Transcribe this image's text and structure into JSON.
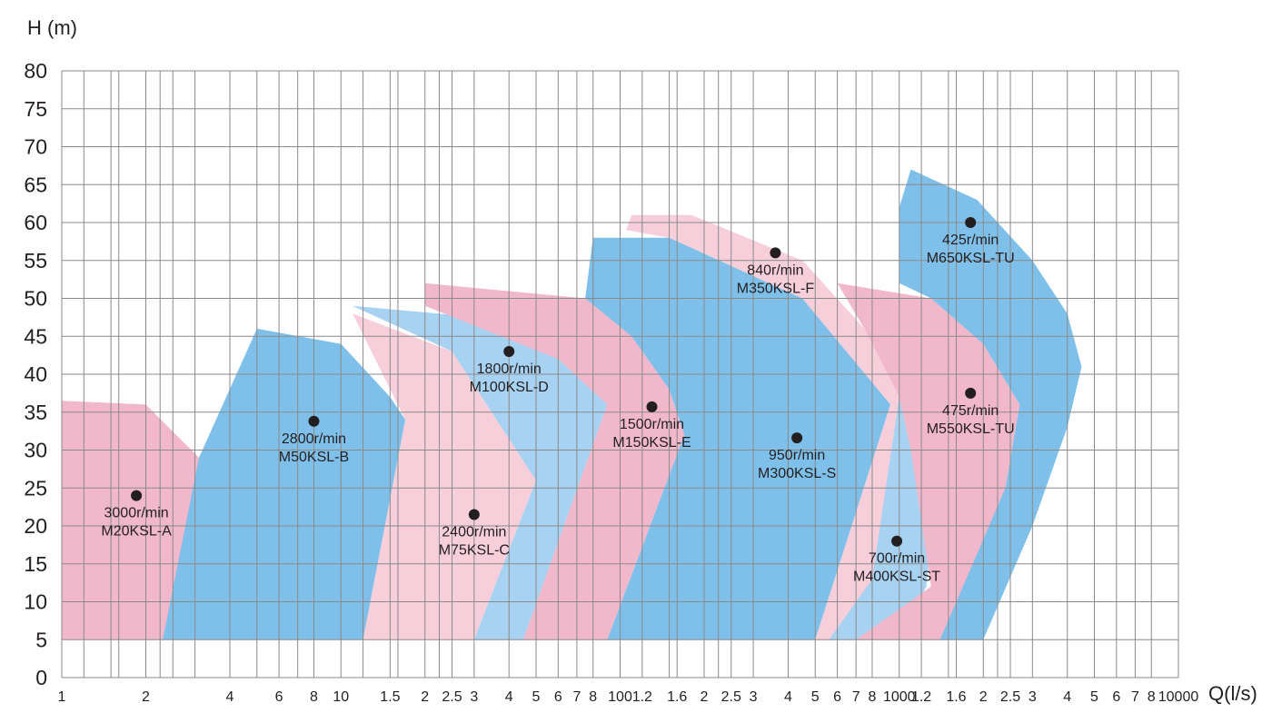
{
  "colors": {
    "pink": "#f0b8ca",
    "light_pink": "#f6cfdb",
    "blue": "#7fc0ea",
    "light_blue": "#a8d2f1",
    "grid": "#8a8a8a",
    "text": "#231f20"
  },
  "chart_data": {
    "type": "area",
    "title": "",
    "xlabel": "Q(l/s)",
    "ylabel": "H (m)",
    "x_scale": "log",
    "xlim": [
      1,
      10000
    ],
    "ylim": [
      0,
      80
    ],
    "y_ticks": [
      "0",
      "5",
      "10",
      "15",
      "20",
      "25",
      "30",
      "35",
      "40",
      "45",
      "50",
      "55",
      "60",
      "65",
      "70",
      "75",
      "80"
    ],
    "x_tick_labels": [
      "1",
      "2",
      "4",
      "6",
      "8",
      "10",
      "1.5",
      "2",
      "2.5",
      "3",
      "4",
      "5",
      "6",
      "7",
      "8",
      "100",
      "1.2",
      "1.6",
      "2",
      "2.5",
      "3",
      "4",
      "5",
      "6",
      "7",
      "8",
      "1000",
      "1.2",
      "1.6",
      "2",
      "2.5",
      "3",
      "4",
      "5",
      "6",
      "7",
      "8",
      "10000"
    ],
    "grid": true,
    "legend": "none",
    "regions": [
      {
        "name": "M20KSL-A",
        "speed": "3000r/min",
        "color": "pink",
        "label_point": [
          1.85,
          24
        ],
        "outline": [
          [
            1,
            5
          ],
          [
            1,
            36.5
          ],
          [
            2,
            36
          ],
          [
            3.1,
            29
          ],
          [
            5,
            20
          ],
          [
            2.3,
            5
          ]
        ]
      },
      {
        "name": "M50KSL-B",
        "speed": "2800r/min",
        "color": "blue",
        "label_point": [
          8,
          33.8
        ],
        "outline": [
          [
            2.3,
            5
          ],
          [
            3.1,
            29
          ],
          [
            5,
            46
          ],
          [
            10,
            44
          ],
          [
            15,
            37
          ],
          [
            17,
            34
          ],
          [
            12,
            5
          ]
        ]
      },
      {
        "name": "M75KSL-C",
        "speed": "2400r/min",
        "color": "light_pink",
        "label_point": [
          30,
          21.5
        ],
        "outline": [
          [
            12,
            5
          ],
          [
            17,
            34
          ],
          [
            11,
            48
          ],
          [
            25,
            43
          ],
          [
            50,
            26
          ],
          [
            30,
            5
          ]
        ]
      },
      {
        "name": "M100KSL-D",
        "speed": "1800r/min",
        "color": "light_blue",
        "label_point": [
          40,
          43
        ],
        "outline": [
          [
            30,
            5
          ],
          [
            50,
            26
          ],
          [
            25,
            43
          ],
          [
            11,
            49
          ],
          [
            45,
            47
          ],
          [
            60,
            42
          ],
          [
            90,
            36
          ],
          [
            45,
            5
          ]
        ]
      },
      {
        "name": "M150KSL-E",
        "speed": "1500r/min",
        "color": "pink",
        "label_point": [
          130,
          35.7
        ],
        "outline": [
          [
            45,
            5
          ],
          [
            90,
            36
          ],
          [
            60,
            42
          ],
          [
            20,
            49
          ],
          [
            20,
            52
          ],
          [
            75,
            50
          ],
          [
            110,
            45
          ],
          [
            150,
            38
          ],
          [
            170,
            32
          ],
          [
            90,
            5
          ]
        ]
      },
      {
        "name": "M300KSL-S",
        "speed": "950r/min",
        "color": "blue",
        "label_point": [
          430,
          31.6
        ],
        "outline": [
          [
            90,
            5
          ],
          [
            170,
            32
          ],
          [
            150,
            38
          ],
          [
            110,
            45
          ],
          [
            75,
            50
          ],
          [
            80,
            58
          ],
          [
            150,
            58
          ],
          [
            450,
            50
          ],
          [
            930,
            36
          ],
          [
            500,
            5
          ]
        ]
      },
      {
        "name": "M350KSL-F",
        "speed": "840r/min",
        "color": "light_pink",
        "label_point": [
          360,
          56
        ],
        "outline": [
          [
            105,
            59
          ],
          [
            110,
            61
          ],
          [
            180,
            61
          ],
          [
            450,
            55
          ],
          [
            750,
            46
          ],
          [
            1000,
            37
          ],
          [
            950,
            30
          ],
          [
            800,
            13
          ],
          [
            600,
            5
          ],
          [
            500,
            5
          ],
          [
            930,
            36
          ],
          [
            450,
            50
          ],
          [
            150,
            58
          ]
        ]
      },
      {
        "name": "M400KSL-ST",
        "speed": "700r/min",
        "color": "light_blue",
        "label_point": [
          980,
          18
        ],
        "outline": [
          [
            560,
            5
          ],
          [
            800,
            13
          ],
          [
            1000,
            37
          ],
          [
            1100,
            30
          ],
          [
            1300,
            18
          ],
          [
            1250,
            12
          ],
          [
            1000,
            5
          ]
        ]
      },
      {
        "name": "M550KSL-TU",
        "speed": "475r/min",
        "color": "pink",
        "label_point": [
          1800,
          37.5
        ],
        "outline": [
          [
            700,
            5
          ],
          [
            1300,
            12
          ],
          [
            1100,
            30
          ],
          [
            1000,
            37
          ],
          [
            750,
            46
          ],
          [
            600,
            52
          ],
          [
            1300,
            50
          ],
          [
            2000,
            44
          ],
          [
            2700,
            36
          ],
          [
            2400,
            25
          ],
          [
            1800,
            5
          ]
        ]
      },
      {
        "name": "M650KSL-TU",
        "speed": "425r/min",
        "color": "blue",
        "label_point": [
          1800,
          60
        ],
        "outline": [
          [
            1400,
            5
          ],
          [
            2400,
            25
          ],
          [
            2700,
            36
          ],
          [
            2000,
            44
          ],
          [
            1300,
            50
          ],
          [
            1000,
            52
          ],
          [
            1000,
            62
          ],
          [
            1100,
            67
          ],
          [
            1900,
            63
          ],
          [
            3000,
            55
          ],
          [
            4000,
            48
          ],
          [
            4500,
            41
          ],
          [
            4000,
            33
          ],
          [
            3000,
            20
          ],
          [
            2000,
            5
          ]
        ]
      }
    ]
  }
}
